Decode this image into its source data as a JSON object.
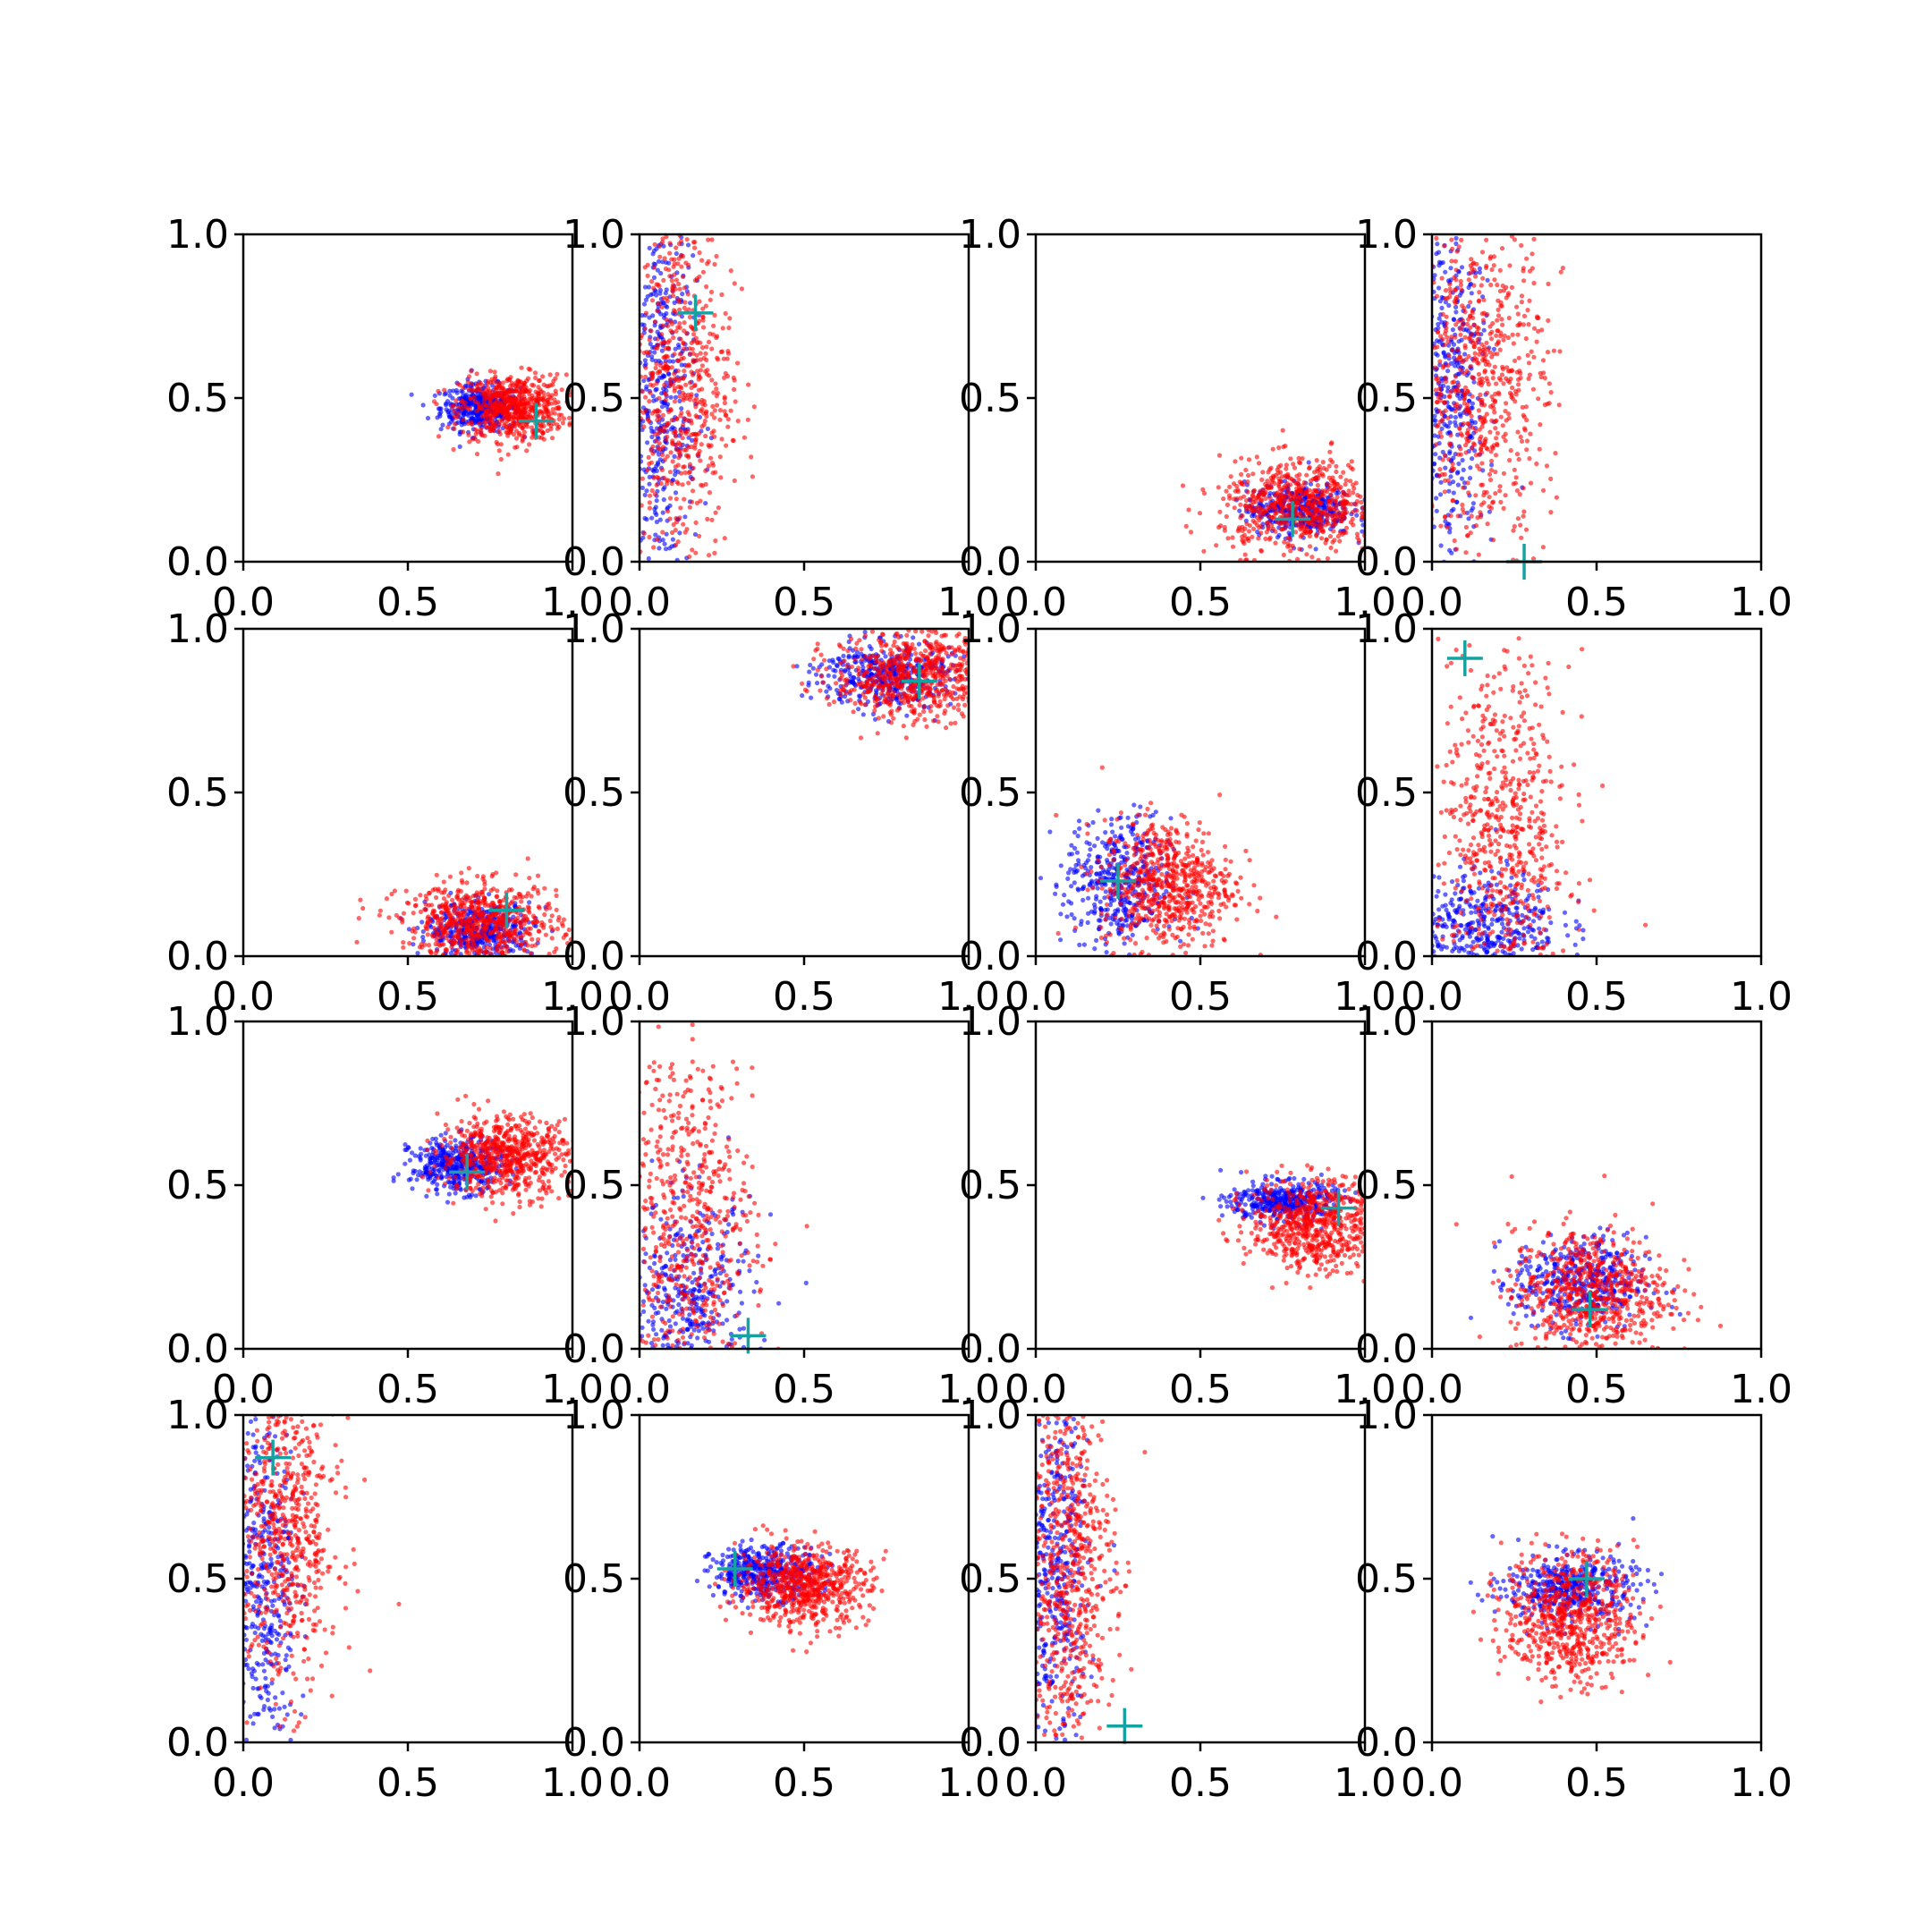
{
  "chart_data": {
    "type": "scatter",
    "grid": false,
    "legend": "none",
    "xlim": [
      0,
      1
    ],
    "ylim": [
      0,
      1
    ],
    "x_ticks": [
      "0.0",
      "0.5",
      "1.0"
    ],
    "y_ticks": [
      "0.0",
      "0.5",
      "1.0"
    ],
    "colors": {
      "series_a": "#0000ff",
      "series_b": "#ff0000",
      "marker": "#17a2a2"
    },
    "panels": [
      {
        "row": 1,
        "col": 1,
        "marker": [
          0.89,
          0.43
        ],
        "blue": {
          "cx": 0.72,
          "cy": 0.47,
          "sx": 0.06,
          "sy": 0.035
        },
        "red": {
          "cx": 0.82,
          "cy": 0.47,
          "sx": 0.08,
          "sy": 0.05
        }
      },
      {
        "row": 1,
        "col": 2,
        "marker": [
          0.17,
          0.76
        ],
        "blue": {
          "cx": 0.07,
          "cy": 0.5,
          "sx": 0.05,
          "sy": 0.3
        },
        "red": {
          "cx": 0.12,
          "cy": 0.55,
          "sx": 0.08,
          "sy": 0.28
        }
      },
      {
        "row": 1,
        "col": 3,
        "marker": [
          0.78,
          0.13
        ],
        "blue": {
          "cx": 0.8,
          "cy": 0.16,
          "sx": 0.08,
          "sy": 0.04
        },
        "red": {
          "cx": 0.8,
          "cy": 0.17,
          "sx": 0.12,
          "sy": 0.07
        }
      },
      {
        "row": 1,
        "col": 4,
        "marker": [
          0.28,
          0.0
        ],
        "blue": {
          "cx": 0.06,
          "cy": 0.5,
          "sx": 0.05,
          "sy": 0.3
        },
        "red": {
          "cx": 0.15,
          "cy": 0.55,
          "sx": 0.1,
          "sy": 0.25
        }
      },
      {
        "row": 2,
        "col": 1,
        "marker": [
          0.8,
          0.14
        ],
        "blue": {
          "cx": 0.72,
          "cy": 0.08,
          "sx": 0.08,
          "sy": 0.04
        },
        "red": {
          "cx": 0.72,
          "cy": 0.1,
          "sx": 0.12,
          "sy": 0.06
        }
      },
      {
        "row": 2,
        "col": 2,
        "marker": [
          0.85,
          0.84
        ],
        "blue": {
          "cx": 0.75,
          "cy": 0.86,
          "sx": 0.1,
          "sy": 0.05
        },
        "red": {
          "cx": 0.83,
          "cy": 0.86,
          "sx": 0.12,
          "sy": 0.07
        }
      },
      {
        "row": 2,
        "col": 3,
        "marker": [
          0.25,
          0.23
        ],
        "blue": {
          "cx": 0.25,
          "cy": 0.22,
          "sx": 0.08,
          "sy": 0.1
        },
        "red": {
          "cx": 0.4,
          "cy": 0.22,
          "sx": 0.1,
          "sy": 0.1
        }
      },
      {
        "row": 2,
        "col": 4,
        "marker": [
          0.1,
          0.91
        ],
        "blue": {
          "cx": 0.15,
          "cy": 0.1,
          "sx": 0.12,
          "sy": 0.08
        },
        "red": {
          "cx": 0.22,
          "cy": 0.35,
          "sx": 0.1,
          "sy": 0.28
        }
      },
      {
        "row": 3,
        "col": 1,
        "marker": [
          0.68,
          0.54
        ],
        "blue": {
          "cx": 0.65,
          "cy": 0.56,
          "sx": 0.07,
          "sy": 0.04
        },
        "red": {
          "cx": 0.8,
          "cy": 0.59,
          "sx": 0.1,
          "sy": 0.06
        }
      },
      {
        "row": 3,
        "col": 2,
        "marker": [
          0.33,
          0.04
        ],
        "blue": {
          "cx": 0.15,
          "cy": 0.15,
          "sx": 0.1,
          "sy": 0.15
        },
        "red": {
          "cx": 0.15,
          "cy": 0.35,
          "sx": 0.1,
          "sy": 0.3
        }
      },
      {
        "row": 3,
        "col": 3,
        "marker": [
          0.92,
          0.43
        ],
        "blue": {
          "cx": 0.75,
          "cy": 0.45,
          "sx": 0.08,
          "sy": 0.03
        },
        "red": {
          "cx": 0.85,
          "cy": 0.38,
          "sx": 0.1,
          "sy": 0.07
        }
      },
      {
        "row": 3,
        "col": 4,
        "marker": [
          0.48,
          0.12
        ],
        "blue": {
          "cx": 0.45,
          "cy": 0.2,
          "sx": 0.1,
          "sy": 0.07
        },
        "red": {
          "cx": 0.48,
          "cy": 0.17,
          "sx": 0.12,
          "sy": 0.1
        }
      },
      {
        "row": 4,
        "col": 1,
        "marker": [
          0.09,
          0.87
        ],
        "blue": {
          "cx": 0.06,
          "cy": 0.5,
          "sx": 0.05,
          "sy": 0.3
        },
        "red": {
          "cx": 0.13,
          "cy": 0.65,
          "sx": 0.08,
          "sy": 0.25
        }
      },
      {
        "row": 4,
        "col": 2,
        "marker": [
          0.29,
          0.53
        ],
        "blue": {
          "cx": 0.38,
          "cy": 0.52,
          "sx": 0.08,
          "sy": 0.04
        },
        "red": {
          "cx": 0.5,
          "cy": 0.48,
          "sx": 0.1,
          "sy": 0.06
        }
      },
      {
        "row": 4,
        "col": 3,
        "marker": [
          0.27,
          0.05
        ],
        "blue": {
          "cx": 0.06,
          "cy": 0.5,
          "sx": 0.05,
          "sy": 0.3
        },
        "red": {
          "cx": 0.1,
          "cy": 0.55,
          "sx": 0.07,
          "sy": 0.28
        }
      },
      {
        "row": 4,
        "col": 4,
        "marker": [
          0.47,
          0.5
        ],
        "blue": {
          "cx": 0.42,
          "cy": 0.47,
          "sx": 0.1,
          "sy": 0.05
        },
        "red": {
          "cx": 0.42,
          "cy": 0.38,
          "sx": 0.1,
          "sy": 0.1
        }
      }
    ]
  }
}
